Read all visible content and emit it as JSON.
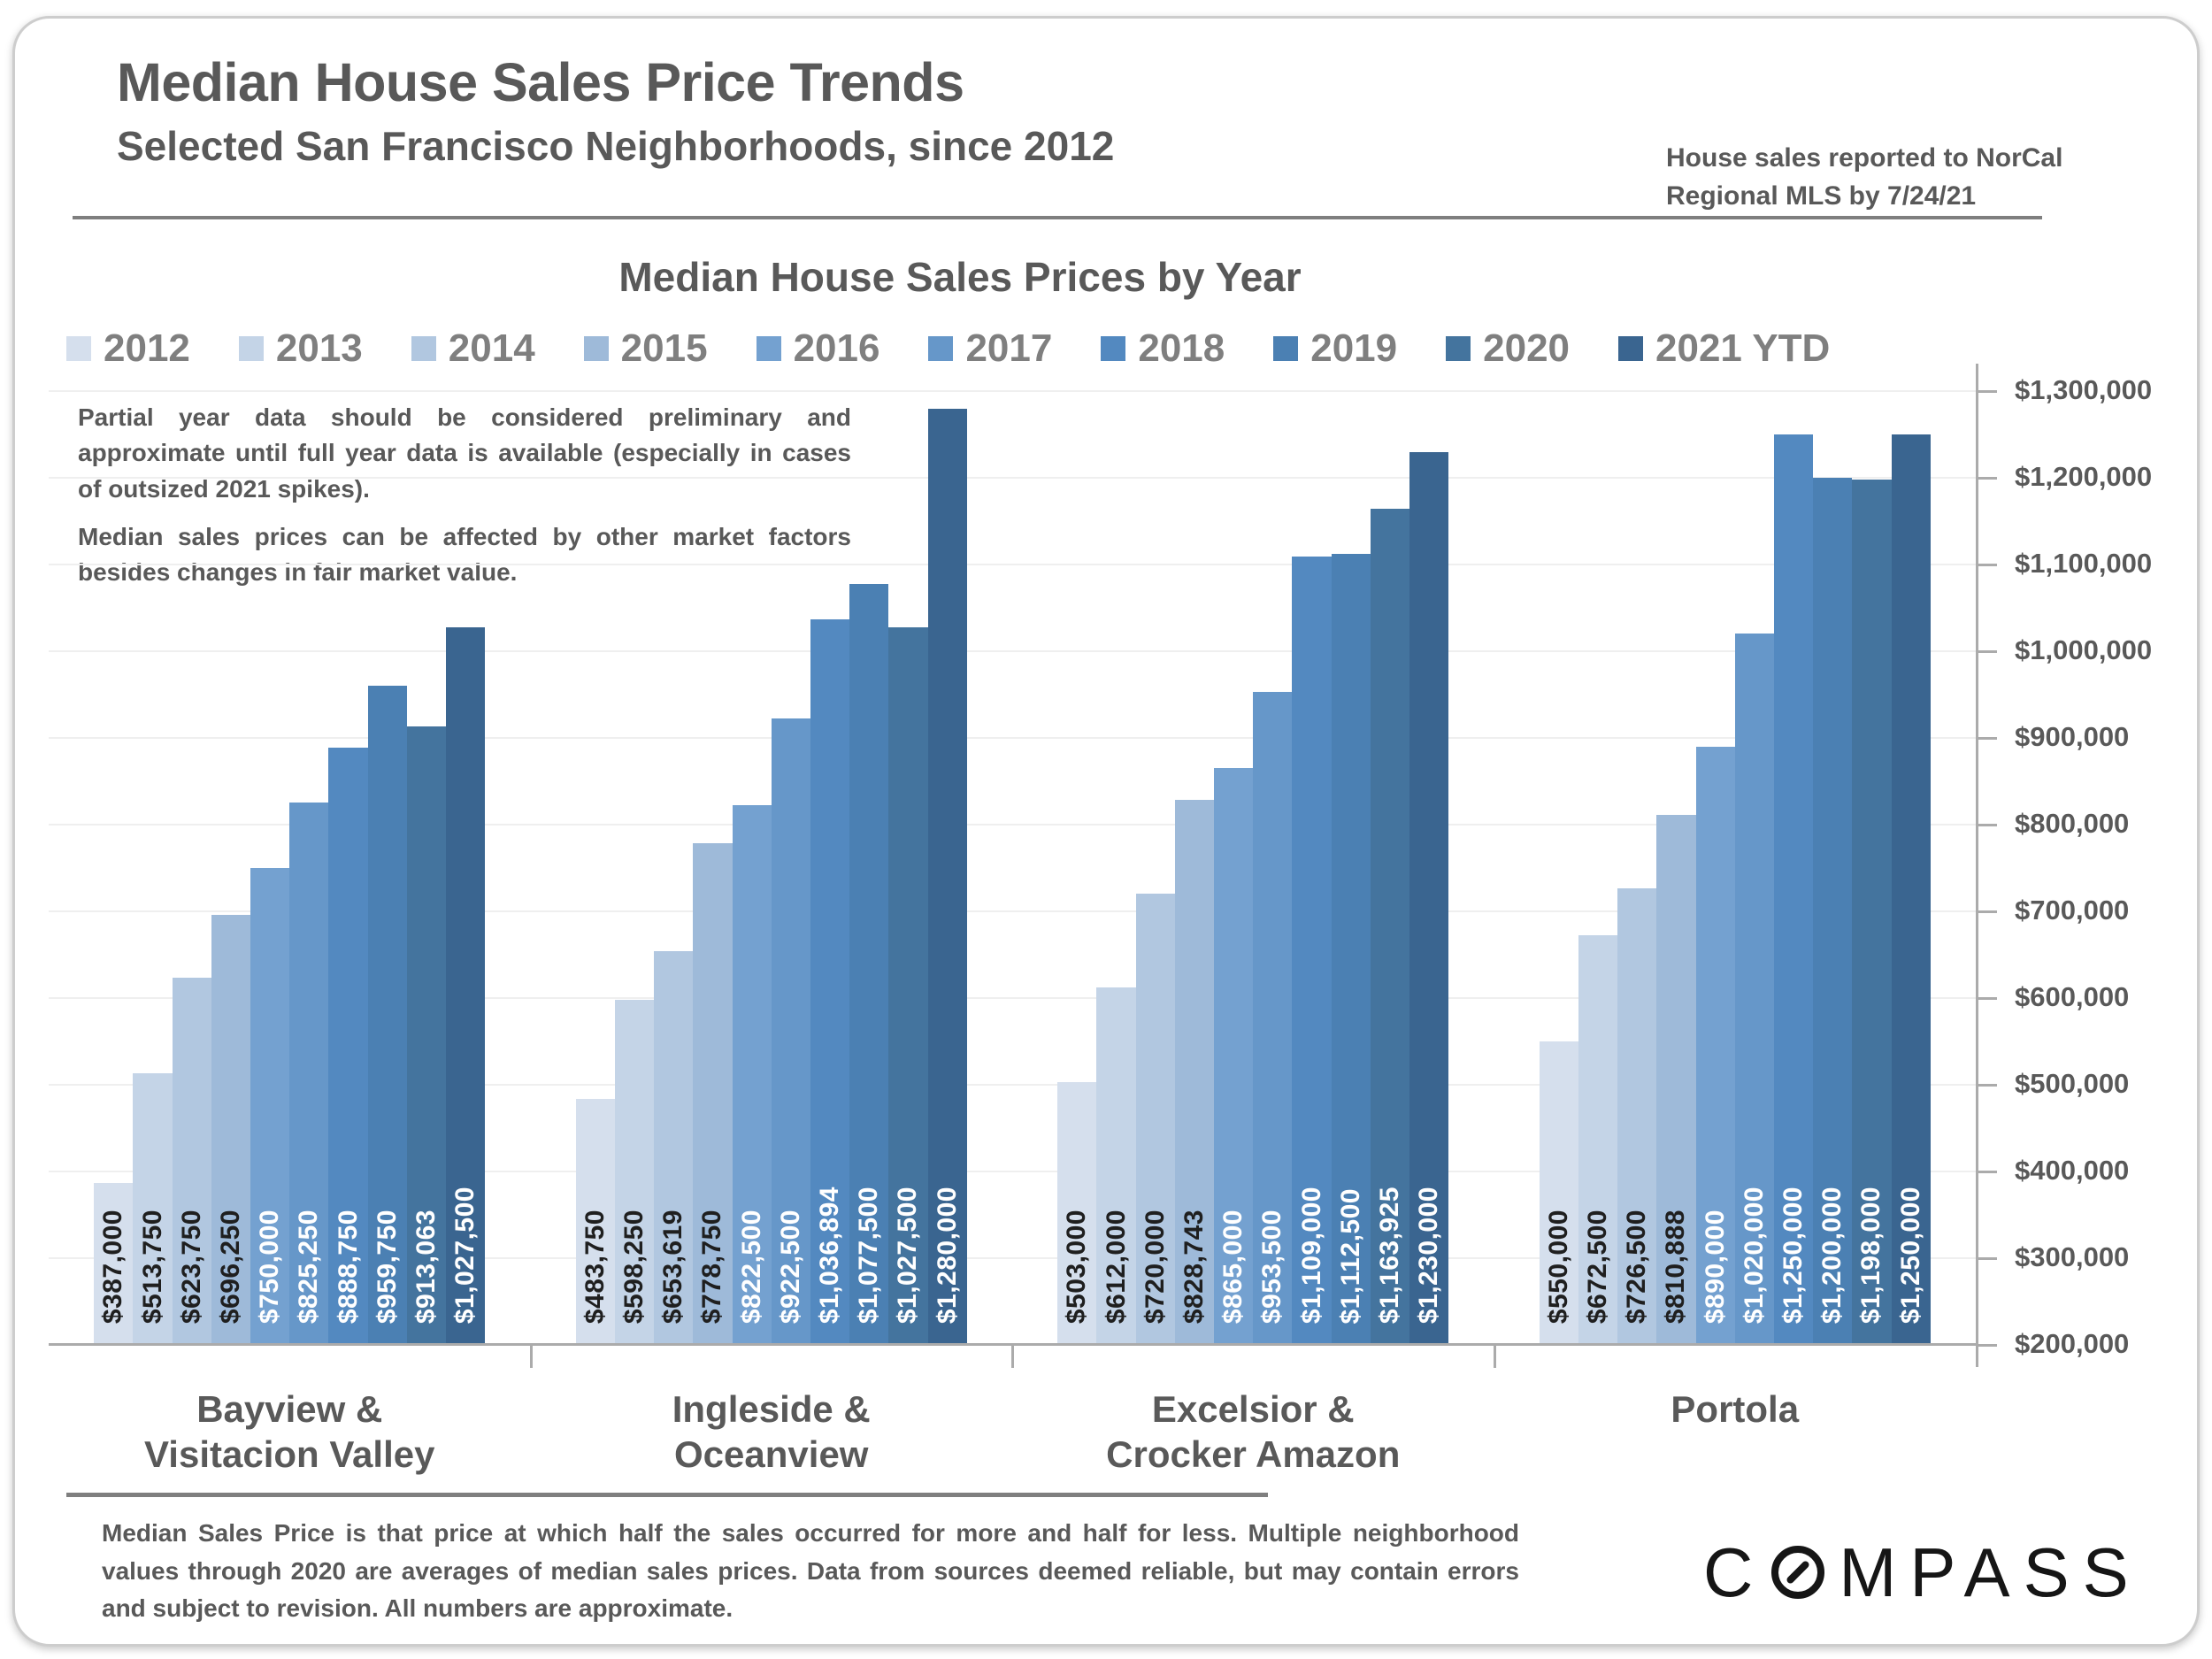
{
  "header": {
    "title": "Median House Sales Price Trends",
    "subtitle": "Selected San Francisco Neighborhoods, since 2012",
    "note": "House sales reported to NorCal\nRegional MLS by 7/24/21"
  },
  "chart": {
    "annotation1": "Partial year data should be considered preliminary and approximate until full year data is available (especially in cases of outsized 2021 spikes).",
    "annotation2": "Median sales prices can be affected by other market factors besides changes in fair market value."
  },
  "chart_data": {
    "type": "bar",
    "title": "Median House Sales Prices by Year",
    "legend_position": "top",
    "grid": true,
    "categories": [
      "Bayview &\nVisitacion Valley",
      "Ingleside &\nOceanview",
      "Excelsior &\nCrocker Amazon",
      "Portola"
    ],
    "series": [
      {
        "name": "2012",
        "color": "#d5dfed",
        "label_color": "#1f1f1f",
        "values": [
          387000,
          483750,
          503000,
          550000
        ],
        "labels": [
          "$387,000",
          "$483,750",
          "$503,000",
          "$550,000"
        ]
      },
      {
        "name": "2013",
        "color": "#c4d4e7",
        "label_color": "#1f1f1f",
        "values": [
          513750,
          598250,
          612000,
          672500
        ],
        "labels": [
          "$513,750",
          "$598,250",
          "$612,000",
          "$672,500"
        ]
      },
      {
        "name": "2014",
        "color": "#b1c7e0",
        "label_color": "#1f1f1f",
        "values": [
          623750,
          653619,
          720000,
          726500
        ],
        "labels": [
          "$623,750",
          "$653,619",
          "$720,000",
          "$726,500"
        ]
      },
      {
        "name": "2015",
        "color": "#9ebad9",
        "label_color": "#1f1f1f",
        "values": [
          696250,
          778750,
          828743,
          810888
        ],
        "labels": [
          "$696,250",
          "$778,750",
          "$828,743",
          "$810,888"
        ]
      },
      {
        "name": "2016",
        "color": "#74a1d0",
        "label_color": "#ffffff",
        "values": [
          750000,
          822500,
          865000,
          890000
        ],
        "labels": [
          "$750,000",
          "$822,500",
          "$865,000",
          "$890,000"
        ]
      },
      {
        "name": "2017",
        "color": "#6697c9",
        "label_color": "#ffffff",
        "values": [
          825250,
          922500,
          953500,
          1020000
        ],
        "labels": [
          "$825,250",
          "$922,500",
          "$953,500",
          "$1,020,000"
        ]
      },
      {
        "name": "2018",
        "color": "#5389c0",
        "label_color": "#ffffff",
        "values": [
          888750,
          1036894,
          1109000,
          1250000
        ],
        "labels": [
          "$888,750",
          "$1,036,894",
          "$1,109,000",
          "$1,250,000"
        ]
      },
      {
        "name": "2019",
        "color": "#4b80b3",
        "label_color": "#ffffff",
        "values": [
          959750,
          1077500,
          1112500,
          1200000
        ],
        "labels": [
          "$959,750",
          "$1,077,500",
          "$1,112,500",
          "$1,200,000"
        ]
      },
      {
        "name": "2020",
        "color": "#44749e",
        "label_color": "#ffffff",
        "values": [
          913063,
          1027500,
          1163925,
          1198000
        ],
        "labels": [
          "$913,063",
          "$1,027,500",
          "$1,163,925",
          "$1,198,000"
        ]
      },
      {
        "name": "2021 YTD",
        "color": "#3a6590",
        "label_color": "#ffffff",
        "values": [
          1027500,
          1280000,
          1230000,
          1250000
        ],
        "labels": [
          "$1,027,500",
          "$1,280,000",
          "$1,230,000",
          "$1,250,000"
        ]
      }
    ],
    "y_axis": {
      "min": 200000,
      "max": 1300000,
      "step": 100000,
      "tick_labels": [
        "$200,000",
        "$300,000",
        "$400,000",
        "$500,000",
        "$600,000",
        "$700,000",
        "$800,000",
        "$900,000",
        "$1,000,000",
        "$1,100,000",
        "$1,200,000",
        "$1,300,000"
      ]
    }
  },
  "footer": {
    "disclaimer": "Median Sales Price is that price at which half the sales occurred for more and half for less. Multiple neighborhood values through 2020 are averages of median sales prices. Data from sources deemed reliable, but may contain errors and subject to revision.  All numbers are approximate.",
    "logo_text": "COMPASS"
  }
}
